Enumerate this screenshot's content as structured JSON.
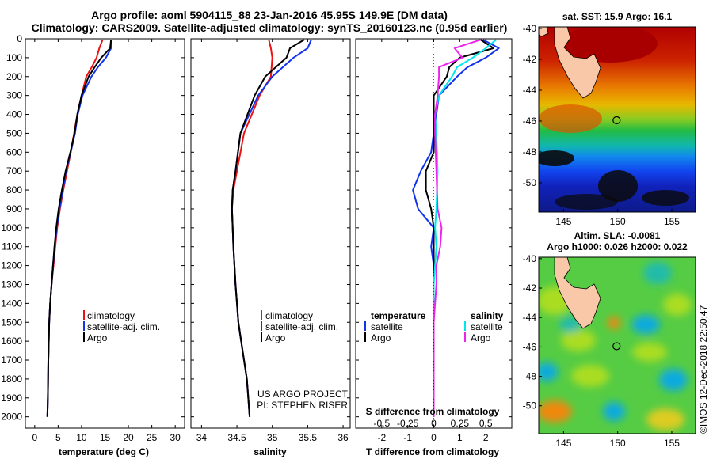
{
  "title_line1": "Argo profile: aoml 5904115_88 23-Jan-2016 45.95S 149.9E (DM data)",
  "title_line2": "Climatology: CARS2009. Satellite-adjusted climatology: synTS_20160123.nc (0.95d earlier)",
  "colors": {
    "climatology": "#ee1111",
    "satellite": "#1133ee",
    "argo": "#000000",
    "sat_salinity": "#00e5ee",
    "argo_salinity": "#ee22ee"
  },
  "chart_data": [
    {
      "type": "line",
      "xlabel": "temperature (deg C)",
      "xlim": [
        -2,
        32
      ],
      "xticks": [
        0,
        5,
        10,
        15,
        20,
        25,
        30
      ],
      "ylim": [
        2060,
        0
      ],
      "yticks": [
        0,
        100,
        200,
        300,
        400,
        500,
        600,
        700,
        800,
        900,
        1000,
        1100,
        1200,
        1300,
        1400,
        1500,
        1600,
        1700,
        1800,
        1900,
        2000
      ],
      "legend": [
        "climatology",
        "satellite-adj. clim.",
        "Argo"
      ],
      "series": [
        {
          "name": "climatology",
          "x": [
            14.5,
            13.8,
            13.2,
            12.2,
            11,
            10,
            9.1,
            8.4,
            7.7,
            6.9,
            6.1,
            5.4,
            4.8,
            4.4,
            4,
            3.6,
            3.3,
            3.1,
            2.9,
            2.8,
            2.7
          ],
          "y": [
            5,
            50,
            100,
            150,
            200,
            300,
            400,
            500,
            600,
            700,
            800,
            900,
            1000,
            1100,
            1200,
            1300,
            1400,
            1500,
            1700,
            1900,
            2000
          ]
        },
        {
          "name": "satellite-adj. clim.",
          "x": [
            16.4,
            16.3,
            15.2,
            13.5,
            12.1,
            10.2,
            9.2,
            8.6,
            7.7,
            6.7,
            6,
            5.3,
            4.7,
            4.3,
            3.9,
            3.6,
            3.3,
            3.1,
            2.9,
            2.8,
            2.7
          ],
          "y": [
            5,
            50,
            100,
            150,
            200,
            300,
            400,
            500,
            600,
            700,
            800,
            900,
            1000,
            1100,
            1200,
            1300,
            1400,
            1500,
            1700,
            1900,
            2000
          ]
        },
        {
          "name": "Argo",
          "x": [
            16.3,
            16.1,
            14.2,
            12.8,
            11.5,
            10,
            9.1,
            8.5,
            7.6,
            6.6,
            5.8,
            5.1,
            4.6,
            4.2,
            3.9,
            3.6,
            3.3,
            3.1,
            2.9,
            2.8,
            2.7
          ],
          "y": [
            5,
            50,
            100,
            150,
            200,
            300,
            400,
            500,
            600,
            700,
            800,
            900,
            1000,
            1100,
            1200,
            1300,
            1400,
            1500,
            1700,
            1900,
            2000
          ]
        }
      ]
    },
    {
      "type": "line",
      "xlabel": "salinity",
      "xlim": [
        33.85,
        36.1
      ],
      "xticks": [
        34,
        34.5,
        35,
        35.5,
        36
      ],
      "xtick_labels": [
        "34",
        "34.5",
        "35",
        "35.5",
        "36"
      ],
      "ylim": [
        2060,
        0
      ],
      "legend": [
        "climatology",
        "satellite-adj. clim.",
        "Argo"
      ],
      "annotation": [
        "US ARGO PROJECT",
        "PI: STEPHEN RISER"
      ],
      "series": [
        {
          "name": "climatology",
          "x": [
            34.95,
            34.98,
            35,
            34.98,
            34.82,
            34.6,
            34.5,
            34.45,
            34.43,
            34.45,
            34.48,
            34.52,
            34.56,
            34.6,
            34.64,
            34.66,
            34.68
          ],
          "y": [
            5,
            50,
            100,
            200,
            300,
            500,
            700,
            800,
            900,
            1100,
            1300,
            1500,
            1600,
            1700,
            1800,
            1900,
            2000
          ]
        },
        {
          "name": "satellite-adj. clim.",
          "x": [
            35.55,
            35.5,
            35.3,
            35,
            34.8,
            34.55,
            34.48,
            34.44,
            34.43,
            34.45,
            34.48,
            34.52,
            34.56,
            34.6,
            34.64,
            34.66,
            34.68
          ],
          "y": [
            5,
            50,
            100,
            200,
            300,
            500,
            700,
            800,
            900,
            1100,
            1300,
            1500,
            1600,
            1700,
            1800,
            1900,
            2000
          ]
        },
        {
          "name": "Argo",
          "x": [
            35.45,
            35.25,
            35.2,
            34.9,
            34.75,
            34.55,
            34.48,
            34.44,
            34.43,
            34.45,
            34.48,
            34.52,
            34.56,
            34.6,
            34.64,
            34.66,
            34.68
          ],
          "y": [
            5,
            50,
            100,
            200,
            300,
            500,
            700,
            800,
            900,
            1100,
            1300,
            1500,
            1600,
            1700,
            1800,
            1900,
            2000
          ]
        }
      ]
    },
    {
      "type": "line",
      "xlabel": "T difference from climatology",
      "xlabel2": "S difference from climatology",
      "xlim": [
        -3,
        3
      ],
      "xticks": [
        -2,
        -1,
        0,
        1,
        2
      ],
      "s_ticks": [
        -0.5,
        -0.25,
        0,
        0.25,
        0.5
      ],
      "s_tick_labels": [
        "-0.5",
        "-0.25",
        "0",
        "0.25",
        "0.5"
      ],
      "ylim": [
        2060,
        0
      ],
      "legend_left_title": "temperature",
      "legend_right_title": "salinity",
      "legend_left": [
        "satellite",
        "Argo"
      ],
      "legend_right": [
        "satellite",
        "Argo"
      ],
      "series": [
        {
          "name": "temperature satellite",
          "x": [
            1.9,
            2.5,
            2,
            1.3,
            0.9,
            0.2,
            0.1,
            0,
            -0.1,
            -0.5,
            -0.8,
            -0.6,
            0,
            -0.1,
            0,
            0,
            0,
            0
          ],
          "y": [
            5,
            50,
            100,
            150,
            200,
            300,
            400,
            500,
            600,
            700,
            800,
            900,
            1000,
            1100,
            1200,
            1300,
            1500,
            2000
          ]
        },
        {
          "name": "temperature Argo",
          "x": [
            1.8,
            2.3,
            1,
            0.6,
            0.5,
            0,
            0,
            0,
            0,
            -0.3,
            -0.3,
            -0.1,
            0,
            0,
            0,
            0,
            0,
            0
          ],
          "y": [
            5,
            50,
            100,
            150,
            200,
            300,
            400,
            500,
            600,
            700,
            800,
            900,
            1000,
            1100,
            1200,
            1300,
            1500,
            2000
          ]
        },
        {
          "name": "salinity satellite",
          "x": [
            2.4,
            2,
            1.5,
            0.9,
            0.7,
            0.2,
            0.05,
            0.1,
            0.15,
            0.1,
            0.05,
            0.1,
            0.05,
            0,
            0,
            0,
            0
          ],
          "y": [
            5,
            50,
            100,
            150,
            200,
            300,
            400,
            500,
            700,
            900,
            1000,
            1100,
            1200,
            1300,
            1500,
            1700,
            2000
          ]
        },
        {
          "name": "salinity Argo",
          "x": [
            1.8,
            0.8,
            1.1,
            0.2,
            0.2,
            0.15,
            0.05,
            0.05,
            0.1,
            0.15,
            0.3,
            0.25,
            0.1,
            0.1,
            0,
            0,
            0
          ],
          "y": [
            5,
            50,
            100,
            150,
            200,
            300,
            400,
            500,
            700,
            900,
            1000,
            1100,
            1200,
            1300,
            1500,
            1700,
            2000
          ]
        }
      ]
    },
    {
      "type": "heatmap",
      "title": "sat. SST: 15.9 Argo: 16.1",
      "xticks": [
        145,
        150,
        155
      ],
      "yticks": [
        -40,
        -42,
        -44,
        -46,
        -48,
        -50
      ],
      "xlim": [
        142.7,
        157.2
      ],
      "ylim": [
        -51.9,
        -39.9
      ],
      "marker": {
        "lon": 149.9,
        "lat": -45.95
      }
    },
    {
      "type": "heatmap",
      "title": "Altim. SLA: -0.0081",
      "subtitle": "Argo h1000: 0.026 h2000: 0.022",
      "xticks": [
        145,
        150,
        155
      ],
      "yticks": [
        -40,
        -42,
        -44,
        -46,
        -48,
        -50
      ],
      "xlim": [
        142.7,
        157.2
      ],
      "ylim": [
        -51.9,
        -39.9
      ],
      "marker": {
        "lon": 149.9,
        "lat": -45.95
      }
    }
  ],
  "watermark": "©IMOS 12-Dec-2018 22:50:47"
}
